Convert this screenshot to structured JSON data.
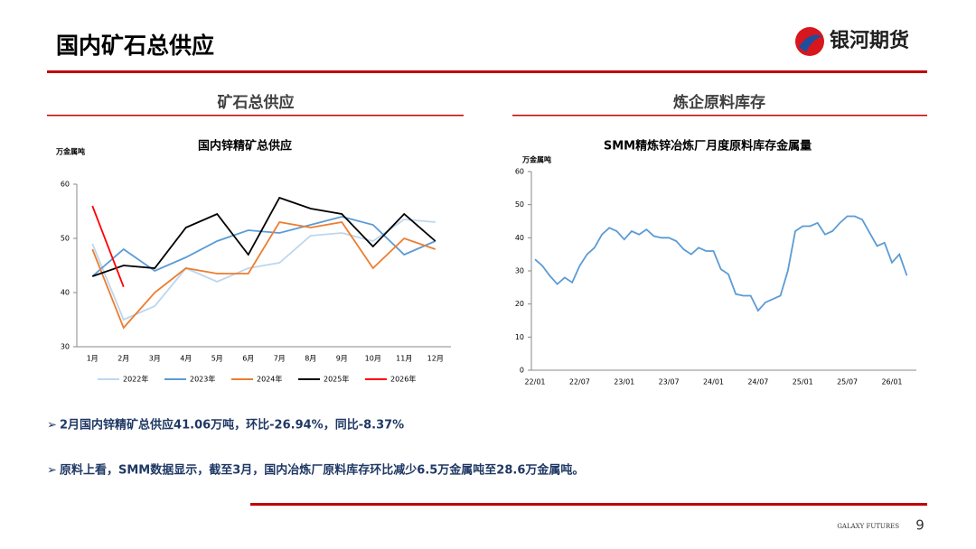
{
  "header": {
    "title": "国内矿石总供应",
    "logo": "银河期货"
  },
  "sections": [
    "矿石总供应",
    "炼企原料库存"
  ],
  "chart_data": [
    {
      "type": "line",
      "title": "国内锌精矿总供应",
      "y_label": "万金属吨",
      "categories": [
        "1月",
        "2月",
        "3月",
        "4月",
        "5月",
        "6月",
        "7月",
        "8月",
        "9月",
        "10月",
        "11月",
        "12月"
      ],
      "ylim": [
        30,
        60
      ],
      "yticks": [
        30,
        40,
        50,
        60
      ],
      "legend": "bottom",
      "series": [
        {
          "name": "2022年",
          "color": "#bdd7ee",
          "values": [
            49,
            35,
            37.5,
            44.5,
            42,
            44.5,
            45.5,
            50.5,
            51,
            49.5,
            53.5,
            53
          ]
        },
        {
          "name": "2023年",
          "color": "#5b9bd5",
          "values": [
            43,
            48,
            44,
            46.5,
            49.5,
            51.5,
            51,
            52.5,
            54,
            52.5,
            47,
            49.5
          ]
        },
        {
          "name": "2024年",
          "color": "#ed7d31",
          "values": [
            48,
            33.5,
            40,
            44.5,
            43.5,
            43.5,
            53,
            52,
            53,
            44.5,
            50,
            48
          ]
        },
        {
          "name": "2025年",
          "color": "#000000",
          "values": [
            43,
            45,
            44.5,
            52,
            54.5,
            47,
            57.5,
            55.5,
            54.5,
            48.5,
            54.5,
            49.5
          ]
        },
        {
          "name": "2026年",
          "color": "#ff0000",
          "values": [
            56,
            41.06,
            null,
            null,
            null,
            null,
            null,
            null,
            null,
            null,
            null,
            null
          ]
        }
      ]
    },
    {
      "type": "line",
      "title": "SMM精炼锌冶炼厂月度原料库存金属量",
      "y_label": "万金属吨",
      "categories": [
        "22/01",
        null,
        null,
        null,
        null,
        null,
        "22/07",
        null,
        null,
        null,
        null,
        null,
        "23/01",
        null,
        null,
        null,
        null,
        null,
        "23/07",
        null,
        null,
        null,
        null,
        null,
        "24/01",
        null,
        null,
        null,
        null,
        null,
        "24/07",
        null,
        null,
        null,
        null,
        null,
        "25/01",
        null,
        null,
        null,
        null,
        null,
        "25/07",
        null,
        null,
        null,
        null,
        null,
        "26/01",
        null,
        null
      ],
      "ylim": [
        0,
        60
      ],
      "yticks": [
        0,
        10,
        20,
        30,
        40,
        50,
        60
      ],
      "series": [
        {
          "color": "#5b9bd5",
          "values": [
            33.5,
            31.5,
            28.5,
            26,
            28,
            26.5,
            31.5,
            35,
            37,
            41,
            43,
            42,
            39.5,
            42,
            41,
            42.5,
            40.5,
            40,
            40,
            39,
            36.5,
            35,
            37,
            36,
            36,
            30.5,
            29,
            23,
            22.5,
            22.5,
            18,
            20.5,
            21.5,
            22.5,
            30,
            42,
            43.5,
            43.5,
            44.5,
            41,
            42,
            44.5,
            46.5,
            46.5,
            45.5,
            41.5,
            37.5,
            38.5,
            32.5,
            35,
            28.6
          ]
        }
      ]
    }
  ],
  "bullets": [
    "2月国内锌精矿总供应41.06万吨，环比-26.94%，同比-8.37%",
    "原料上看，SMM数据显示，截至3月，国内冶炼厂原料库存环比减少6.5万金属吨至28.6万金属吨。"
  ],
  "footer": {
    "brand": "GALAXY FUTURES",
    "page": "9"
  }
}
